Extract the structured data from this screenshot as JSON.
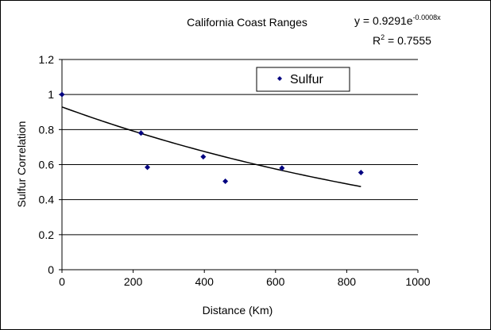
{
  "chart_data": {
    "type": "scatter",
    "title": "California Coast Ranges",
    "xlabel": "Distance (Km)",
    "ylabel": "Sulfur Correlation",
    "xlim": [
      0,
      1000
    ],
    "ylim": [
      0,
      1.2
    ],
    "xticks": [
      0,
      200,
      400,
      600,
      800,
      1000
    ],
    "xtick_labels": [
      "0",
      "200",
      "400",
      "600",
      "800",
      "1000"
    ],
    "yticks": [
      0,
      0.2,
      0.4,
      0.6,
      0.8,
      1,
      1.2
    ],
    "ytick_labels": [
      "0",
      "0.2",
      "0.4",
      "0.6",
      "0.8",
      "1",
      "1.2"
    ],
    "grid": {
      "horizontal": true,
      "vertical": false
    },
    "legend": {
      "position": "top-right",
      "entries": [
        "Sulfur"
      ]
    },
    "series": [
      {
        "name": "Sulfur",
        "color": "#000080",
        "marker": "diamond",
        "x": [
          0,
          222,
          240,
          397,
          459,
          618,
          840
        ],
        "y": [
          1.0,
          0.78,
          0.585,
          0.645,
          0.505,
          0.58,
          0.555
        ]
      }
    ],
    "trendline": {
      "type": "exponential",
      "a": 0.9291,
      "b": -0.0008,
      "x_range": [
        0,
        840
      ],
      "color": "#000000"
    },
    "annotations": {
      "equation_prefix": "y = 0.9291e",
      "equation_exponent": "-0.0008x",
      "r2_prefix": "R",
      "r2_sup": "2",
      "r2_suffix": " = 0.7555"
    }
  }
}
